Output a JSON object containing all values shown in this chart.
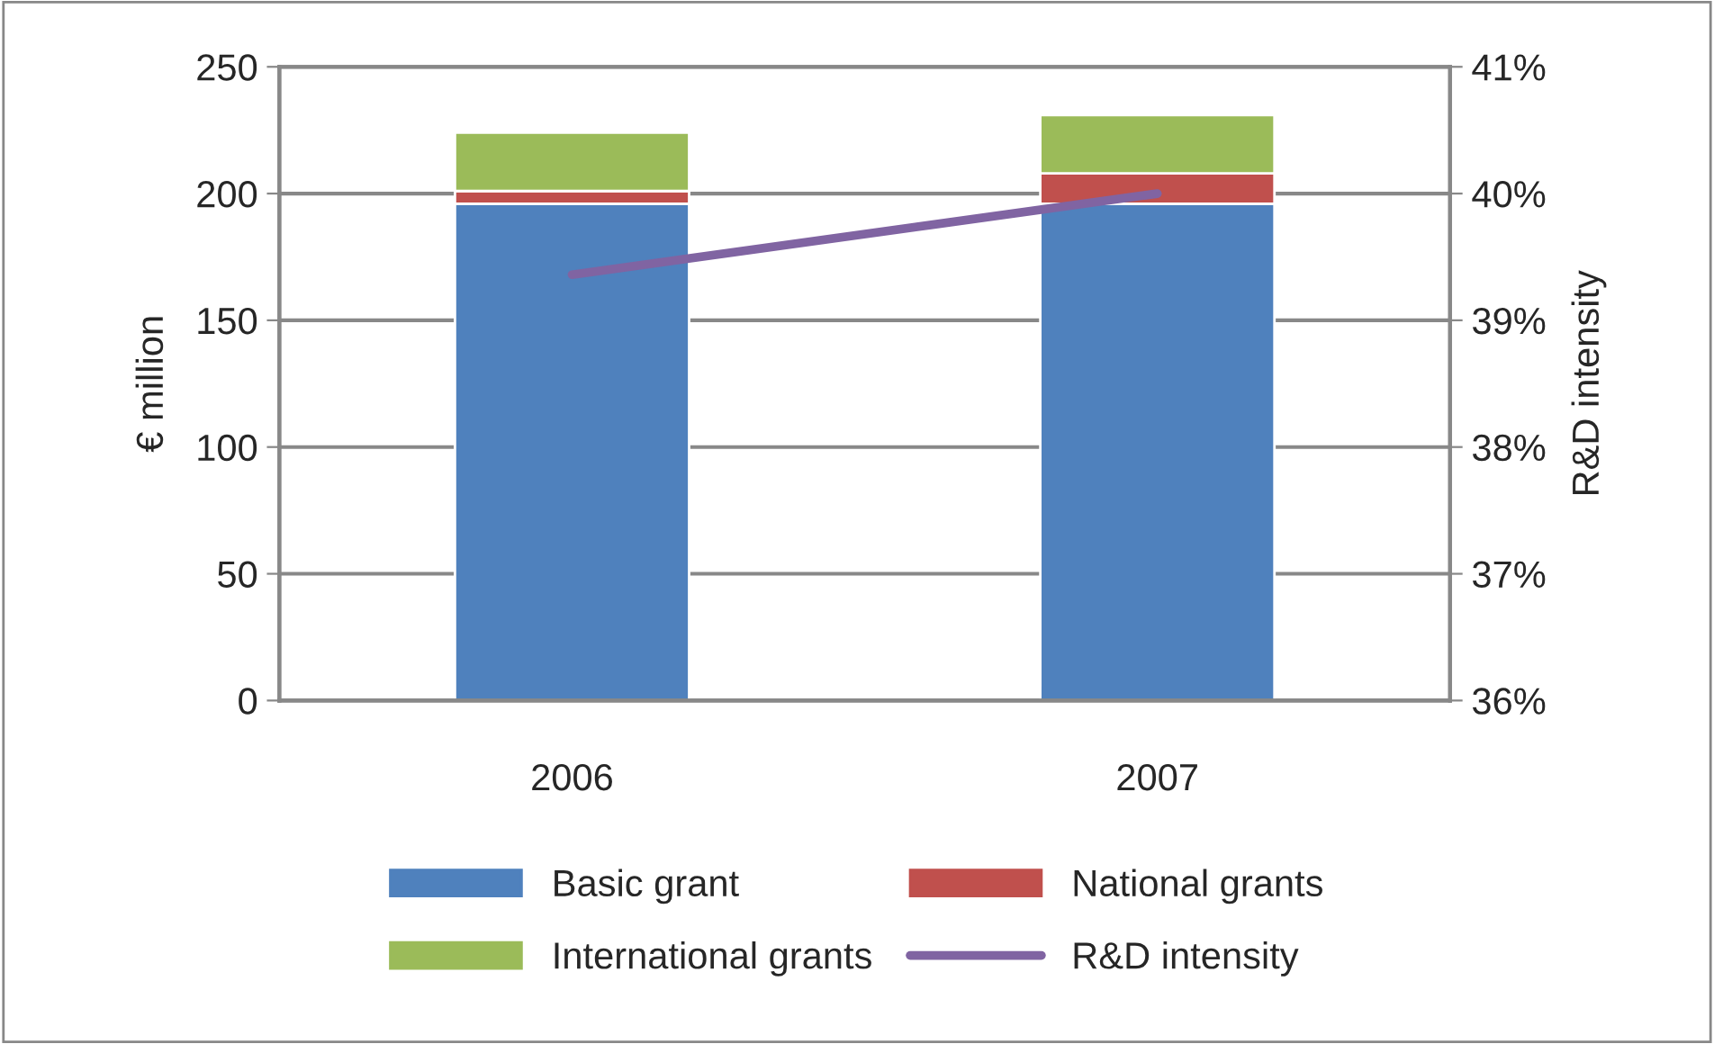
{
  "chart_data": {
    "type": "bar",
    "stacked": true,
    "categories": [
      "2006",
      "2007"
    ],
    "series": [
      {
        "name": "Basic grant",
        "color": "#4f81bd",
        "values": [
          196,
          196
        ]
      },
      {
        "name": "National grants",
        "color": "#c0504d",
        "values": [
          5,
          12
        ]
      },
      {
        "name": "International grants",
        "color": "#9bbb59",
        "values": [
          23,
          23
        ]
      },
      {
        "name": "R&D intensity",
        "color": "#8064a2",
        "type": "line",
        "axis": "y2",
        "values": [
          39.36,
          40.0
        ]
      }
    ],
    "ylabel": "€ million",
    "y2label": "R&D intensity",
    "ylim": [
      0,
      250
    ],
    "yticks": [
      0,
      50,
      100,
      150,
      200,
      250
    ],
    "y2lim": [
      36,
      41
    ],
    "y2ticks": [
      {
        "value": 36,
        "label": "36%"
      },
      {
        "value": 37,
        "label": "37%"
      },
      {
        "value": 38,
        "label": "38%"
      },
      {
        "value": 39,
        "label": "39%"
      },
      {
        "value": 40,
        "label": "40%"
      },
      {
        "value": 41,
        "label": "41%"
      }
    ],
    "grid": "y",
    "legend": "bottom",
    "marker": "none",
    "line_style": "solid"
  }
}
